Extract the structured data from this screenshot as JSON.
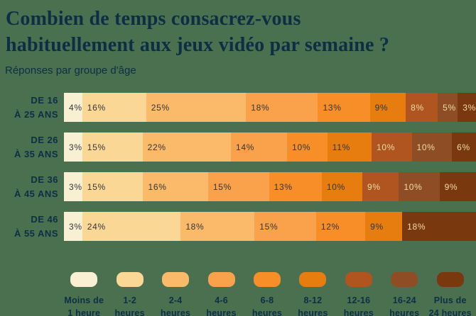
{
  "title_lines": [
    "Combien de temps consacrez-vous",
    "habituellement aux jeux vidéo par semaine ?"
  ],
  "subtitle": "Réponses par groupe d'âge",
  "colors": {
    "background": "#4A7050",
    "text_navy": "#0D2F45",
    "value_text_dark": "#33363B",
    "value_text_light": "#F0DCA4"
  },
  "chart_data": {
    "type": "bar",
    "stacked": true,
    "orientation": "horizontal",
    "unit": "%",
    "title": "Combien de temps consacrez-vous habituellement aux jeux vidéo par semaine ?",
    "subtitle": "Réponses par groupe d'âge",
    "categories": [
      "Moins de 1 heure",
      "1-2 heures",
      "2-4 heures",
      "4-6 heures",
      "6-8 heures",
      "8-12 heures",
      "12-16 heures",
      "16-24 heures",
      "Plus de 24 heures"
    ],
    "category_colors": [
      "#F9F0D3",
      "#FBD795",
      "#FBB96A",
      "#FAA14C",
      "#F78E28",
      "#E67D0E",
      "#B05420",
      "#8E4D24",
      "#7A380F"
    ],
    "category_text_style": [
      "dark",
      "dark",
      "dark",
      "dark",
      "dark",
      "dark",
      "light",
      "light",
      "light"
    ],
    "groups": [
      {
        "label_lines": [
          "DE 16",
          "À 25 ANS"
        ],
        "values": [
          4,
          16,
          25,
          18,
          13,
          9,
          8,
          5,
          3
        ]
      },
      {
        "label_lines": [
          "DE 26",
          "À 35 ANS"
        ],
        "values": [
          3,
          15,
          22,
          14,
          10,
          11,
          10,
          10,
          6
        ]
      },
      {
        "label_lines": [
          "DE 36",
          "À 45 ANS"
        ],
        "values": [
          3,
          15,
          16,
          15,
          13,
          10,
          9,
          10,
          9
        ]
      },
      {
        "label_lines": [
          "DE 46",
          "À 55 ANS"
        ],
        "values": [
          3,
          24,
          18,
          15,
          12,
          9,
          0,
          0,
          18
        ]
      }
    ]
  },
  "legend": {
    "items": [
      {
        "line1": "Moins de",
        "line2": "1 heure"
      },
      {
        "line1": "1-2",
        "line2": "heures"
      },
      {
        "line1": "2-4",
        "line2": "heures"
      },
      {
        "line1": "4-6",
        "line2": "heures"
      },
      {
        "line1": "6-8",
        "line2": "heures"
      },
      {
        "line1": "8-12",
        "line2": "heures"
      },
      {
        "line1": "12-16",
        "line2": "heures"
      },
      {
        "line1": "16-24",
        "line2": "heures"
      },
      {
        "line1": "Plus de",
        "line2": "24 heures"
      }
    ]
  }
}
